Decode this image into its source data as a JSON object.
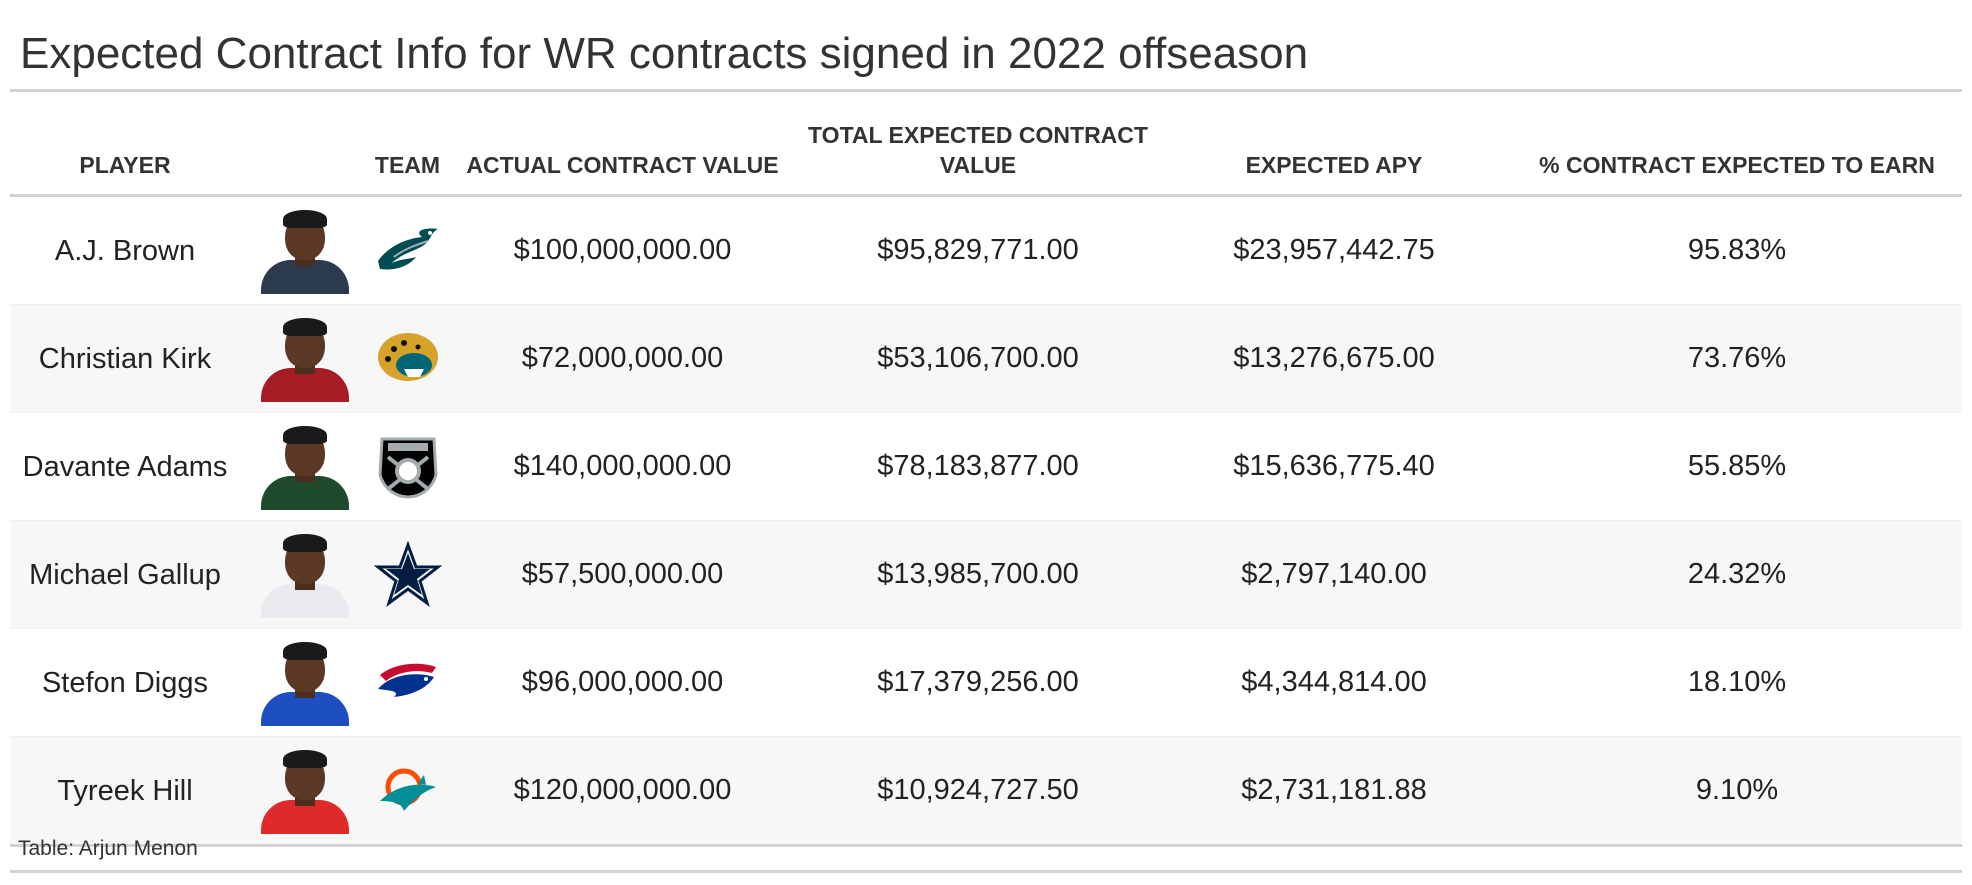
{
  "title": "Expected Contract Info for WR contracts signed in 2022 offseason",
  "headers": {
    "player": "PLAYER",
    "team": "TEAM",
    "actual": "ACTUAL CONTRACT VALUE",
    "total": "TOTAL EXPECTED CONTRACT VALUE",
    "apy": "EXPECTED APY",
    "pct": "% CONTRACT EXPECTED TO EARN"
  },
  "rows": [
    {
      "player": "A.J. Brown",
      "team_icon": "eagles-logo-icon",
      "jersey_color": "#2b3a4d",
      "actual": "$100,000,000.00",
      "total": "$95,829,771.00",
      "apy": "$23,957,442.75",
      "pct": "95.83%"
    },
    {
      "player": "Christian Kirk",
      "team_icon": "jaguars-logo-icon",
      "jersey_color": "#a51c24",
      "actual": "$72,000,000.00",
      "total": "$53,106,700.00",
      "apy": "$13,276,675.00",
      "pct": "73.76%"
    },
    {
      "player": "Davante Adams",
      "team_icon": "raiders-logo-icon",
      "jersey_color": "#1f4a2c",
      "actual": "$140,000,000.00",
      "total": "$78,183,877.00",
      "apy": "$15,636,775.40",
      "pct": "55.85%"
    },
    {
      "player": "Michael Gallup",
      "team_icon": "cowboys-logo-icon",
      "jersey_color": "#e8eaee",
      "actual": "$57,500,000.00",
      "total": "$13,985,700.00",
      "apy": "$2,797,140.00",
      "pct": "24.32%"
    },
    {
      "player": "Stefon Diggs",
      "team_icon": "bills-logo-icon",
      "jersey_color": "#1e4fc0",
      "actual": "$96,000,000.00",
      "total": "$17,379,256.00",
      "apy": "$4,344,814.00",
      "pct": "18.10%"
    },
    {
      "player": "Tyreek Hill",
      "team_icon": "dolphins-logo-icon",
      "jersey_color": "#e02a2a",
      "actual": "$120,000,000.00",
      "total": "$10,924,727.50",
      "apy": "$2,731,181.88",
      "pct": "9.10%"
    }
  ],
  "caption": "Table: Arjun Menon",
  "colors": {
    "rule": "#d3d3d3",
    "stripe": "#f7f7f7",
    "eagles_green": "#004c54",
    "jaguars_teal": "#006778",
    "jaguars_gold": "#d7a22a",
    "raiders_black": "#000000",
    "raiders_silver": "#a5acaf",
    "cowboys_navy": "#041e42",
    "bills_blue": "#00338d",
    "bills_red": "#c60c30",
    "dolphins_aqua": "#008e97",
    "dolphins_orange": "#fc4c02"
  }
}
